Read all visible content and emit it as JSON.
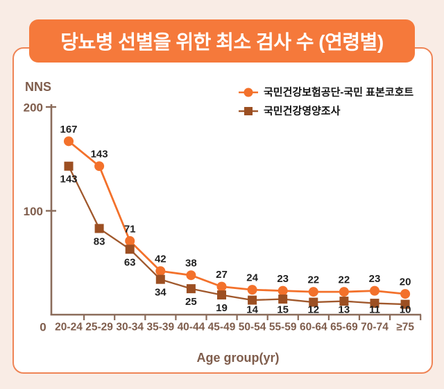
{
  "page": {
    "bg": "#f9ece5"
  },
  "title_banner": {
    "text": "당뇨병 선별을 위한 최소 검사 수 (연령별)",
    "bg": "#f5793b",
    "text_color": "#ffffff"
  },
  "card": {
    "bg": "#ffffff",
    "border_color": "#ef8455"
  },
  "chart_data": {
    "type": "line",
    "title": "당뇨병 선별을 위한 최소 검사 수 (연령별)",
    "ylabel": "NNS",
    "xlabel": "Age group(yr)",
    "ylim": [
      0,
      200
    ],
    "yticks": [
      0,
      100,
      200
    ],
    "origin_label": "0",
    "grid": false,
    "legend_position": "top-right",
    "categories": [
      "20-24",
      "25-29",
      "30-34",
      "35-39",
      "40-44",
      "45-49",
      "50-54",
      "55-59",
      "60-64",
      "65-69",
      "70-74",
      "≥75"
    ],
    "series": [
      {
        "name": "국민건강보험공단-국민 표본코호트",
        "marker": "circle",
        "color": "#f3712b",
        "label_side": "above",
        "values": [
          167,
          143,
          71,
          42,
          38,
          27,
          24,
          23,
          22,
          22,
          23,
          20
        ]
      },
      {
        "name": "국민건강영양조사",
        "marker": "square",
        "color": "#9c4f22",
        "line_color": "#a0582c",
        "label_side": "below",
        "values": [
          143,
          83,
          63,
          34,
          25,
          19,
          14,
          15,
          12,
          13,
          11,
          10
        ]
      }
    ],
    "axis_color": "#8a6b5a",
    "tick_label_color": "#7f5d4c",
    "data_label_color": "#1f1f1f",
    "legend_text_color": "#111111"
  }
}
